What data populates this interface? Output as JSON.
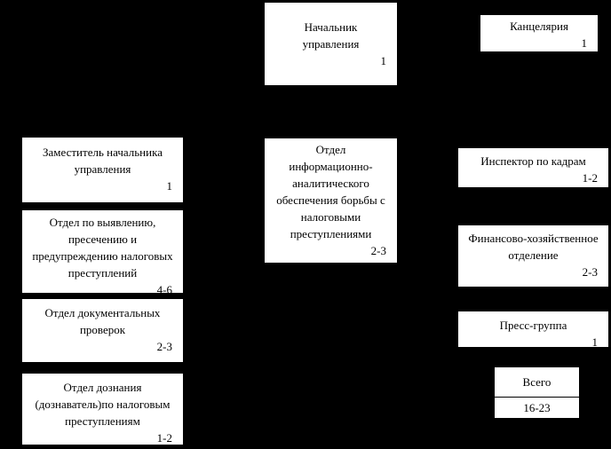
{
  "colors": {
    "background": "#000000",
    "box_background": "#ffffff",
    "box_text": "#000000"
  },
  "boxes": {
    "head": {
      "label": "Начальник\nуправления",
      "count": "1"
    },
    "chancellery": {
      "label": "Канцелярия",
      "count": "1"
    },
    "deputy": {
      "label": "Заместитель начальника\nуправления",
      "count": "1"
    },
    "detection": {
      "label": "Отдел по выявлению,\nпресечению и\nпредупреждению налоговых\nпреступлений",
      "count": "4-6"
    },
    "documentary": {
      "label": "Отдел документальных\nпроверок",
      "count": "2-3"
    },
    "inquiry": {
      "label": "Отдел дознания\n(дознаватель)по налоговым\nпреступлениям",
      "count": "1-2"
    },
    "info": {
      "label": "Отдел\nинформационно-\nаналитического\nобеспечения борьбы с\nналоговыми\nпреступлениями",
      "count": "2-3"
    },
    "hr": {
      "label": "Инспектор по кадрам",
      "count": "1-2"
    },
    "finance": {
      "label": "Финансово-хозяйственное\nотделение",
      "count": "2-3"
    },
    "press": {
      "label": "Пресс-группа",
      "count": "1"
    },
    "total": {
      "label": "Всего",
      "count": "16-23"
    }
  }
}
